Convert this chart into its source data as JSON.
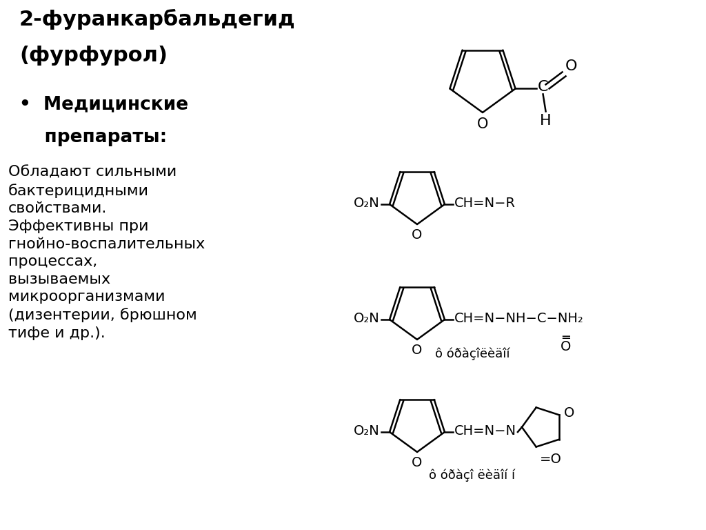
{
  "title_line1": "2-фуранкарбальдегид",
  "title_line2": "(фурфурол)",
  "bullet_line1": "•  Медицинские",
  "bullet_line2": "    препараты:",
  "body": "Обладают сильными\nбактерицидными\nсвойствами.\nЭффективны при\nгнойно-воспалительных\nпроцессах,\nвызываемых\nмикроорганизмами\n(дизентерии, брюшном\nтифе и др.).",
  "label1": "ô óðàçîëèäîí",
  "label2": "ô óðàçî ëèäîí í",
  "bg": "#ffffff",
  "fg": "#000000",
  "lw": 1.8,
  "fs_title": 22,
  "fs_bullet": 19,
  "fs_body": 16,
  "fs_chem": 14
}
